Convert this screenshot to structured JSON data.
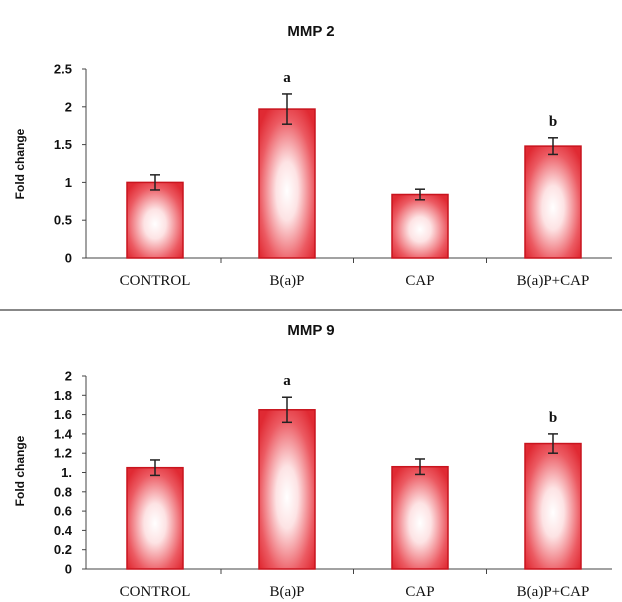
{
  "chart_data": [
    {
      "type": "bar",
      "title": "MMP 2",
      "ylabel": "Fold change",
      "categories": [
        "CONTROL",
        "B(a)P",
        "CAP",
        "B(a)P+CAP"
      ],
      "values": [
        1.0,
        1.97,
        0.84,
        1.48
      ],
      "errors": [
        0.1,
        0.2,
        0.07,
        0.11
      ],
      "annotations": [
        "",
        "a",
        "",
        "b"
      ],
      "yticks": [
        "0",
        "0.5",
        "1",
        "1.5",
        "2",
        "2.5"
      ],
      "ylim": [
        0,
        2.5
      ],
      "bar_color": "#e8323c"
    },
    {
      "type": "bar",
      "title": "MMP 9",
      "ylabel": "Fold change",
      "categories": [
        "CONTROL",
        "B(a)P",
        "CAP",
        "B(a)P+CAP"
      ],
      "values": [
        1.05,
        1.65,
        1.06,
        1.3
      ],
      "errors": [
        0.08,
        0.13,
        0.08,
        0.1
      ],
      "annotations": [
        "",
        "a",
        "",
        "b"
      ],
      "yticks": [
        "0",
        "0.2",
        "0.4",
        "0.6",
        "0.8",
        "1.",
        "1.2",
        "1.4",
        "1.6",
        "1.8",
        "2"
      ],
      "ylim": [
        0,
        2
      ],
      "bar_color": "#e8323c"
    }
  ]
}
